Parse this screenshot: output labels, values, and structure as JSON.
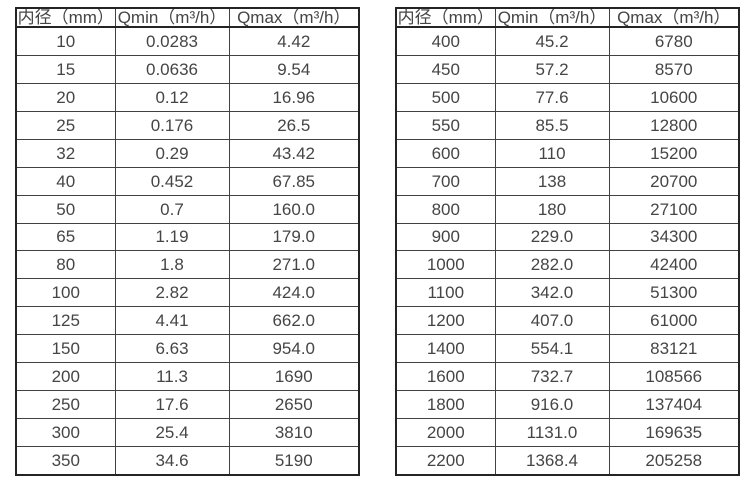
{
  "columns": {
    "diameter": "内径（mm）",
    "qmin": "Qmin（m³/h）",
    "qmax": "Qmax（m³/h）"
  },
  "left_table": {
    "rows": [
      [
        "10",
        "0.0283",
        "4.42"
      ],
      [
        "15",
        "0.0636",
        "9.54"
      ],
      [
        "20",
        "0.12",
        "16.96"
      ],
      [
        "25",
        "0.176",
        "26.5"
      ],
      [
        "32",
        "0.29",
        "43.42"
      ],
      [
        "40",
        "0.452",
        "67.85"
      ],
      [
        "50",
        "0.7",
        "160.0"
      ],
      [
        "65",
        "1.19",
        "179.0"
      ],
      [
        "80",
        "1.8",
        "271.0"
      ],
      [
        "100",
        "2.82",
        "424.0"
      ],
      [
        "125",
        "4.41",
        "662.0"
      ],
      [
        "150",
        "6.63",
        "954.0"
      ],
      [
        "200",
        "11.3",
        "1690"
      ],
      [
        "250",
        "17.6",
        "2650"
      ],
      [
        "300",
        "25.4",
        "3810"
      ],
      [
        "350",
        "34.6",
        "5190"
      ]
    ]
  },
  "right_table": {
    "rows": [
      [
        "400",
        "45.2",
        "6780"
      ],
      [
        "450",
        "57.2",
        "8570"
      ],
      [
        "500",
        "77.6",
        "10600"
      ],
      [
        "550",
        "85.5",
        "12800"
      ],
      [
        "600",
        "110",
        "15200"
      ],
      [
        "700",
        "138",
        "20700"
      ],
      [
        "800",
        "180",
        "27100"
      ],
      [
        "900",
        "229.0",
        "34300"
      ],
      [
        "1000",
        "282.0",
        "42400"
      ],
      [
        "1100",
        "342.0",
        "51300"
      ],
      [
        "1200",
        "407.0",
        "61000"
      ],
      [
        "1400",
        "554.1",
        "83121"
      ],
      [
        "1600",
        "732.7",
        "108566"
      ],
      [
        "1800",
        "916.0",
        "137404"
      ],
      [
        "2000",
        "1131.0",
        "169635"
      ],
      [
        "2200",
        "1368.4",
        "205258"
      ]
    ]
  },
  "colors": {
    "background": "#ffffff",
    "border_outer": "#242424",
    "border_inner": "#424242",
    "text": "#454545"
  }
}
